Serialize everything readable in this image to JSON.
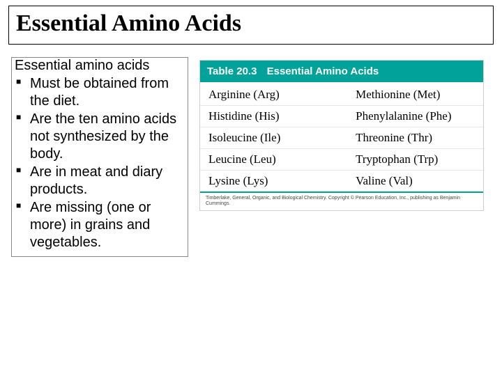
{
  "colors": {
    "teal": "#00a29a",
    "border_gray": "#cfcfcf",
    "row_divider": "#e6e6e6",
    "text": "#000000",
    "bg": "#ffffff"
  },
  "title": "Essential Amino Acids",
  "lead": "Essential amino acids",
  "bullets": [
    "Must be obtained from the diet.",
    "Are the ten amino acids  not synthesized by the body.",
    "Are in meat and diary products.",
    "Are missing (one or more) in grains and vegetables."
  ],
  "table": {
    "number": "Table 20.3",
    "title": "Essential Amino Acids",
    "rows": [
      [
        "Arginine (Arg)",
        "Methionine (Met)"
      ],
      [
        "Histidine (His)",
        "Phenylalanine (Phe)"
      ],
      [
        "Isoleucine (Ile)",
        "Threonine (Thr)"
      ],
      [
        "Leucine (Leu)",
        "Tryptophan (Trp)"
      ],
      [
        "Lysine (Lys)",
        "Valine (Val)"
      ]
    ],
    "credit": "Timberlake, General, Organic, and Biological Chemistry. Copyright © Pearson Education, Inc., publishing as Benjamin Cummings."
  }
}
